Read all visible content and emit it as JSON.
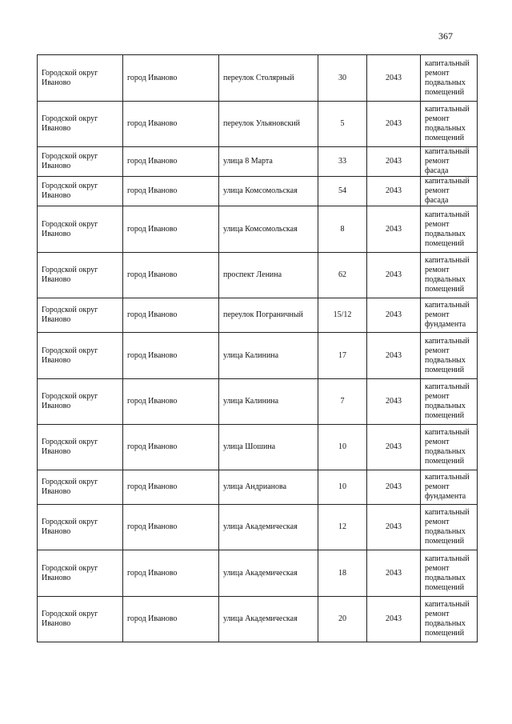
{
  "page_number": "367",
  "table": {
    "rows": [
      [
        "Городской округ Иваново",
        "город Иваново",
        "переулок Столярный",
        "30",
        "2043",
        "капитальный ремонт подвальных помещений"
      ],
      [
        "Городской округ Иваново",
        "город Иваново",
        "переулок Ульяновский",
        "5",
        "2043",
        "капитальный ремонт подвальных помещений"
      ],
      [
        "Городской округ Иваново",
        "город Иваново",
        "улица 8 Марта",
        "33",
        "2043",
        "капитальный ремонт фасада"
      ],
      [
        "Городской округ Иваново",
        "город Иваново",
        "улица Комсомольская",
        "54",
        "2043",
        "капитальный ремонт фасада"
      ],
      [
        "Городской округ Иваново",
        "город Иваново",
        "улица Комсомольская",
        "8",
        "2043",
        "капитальный ремонт подвальных помещений"
      ],
      [
        "Городской округ Иваново",
        "город Иваново",
        "проспект Ленина",
        "62",
        "2043",
        "капитальный ремонт подвальных помещений"
      ],
      [
        "Городской округ Иваново",
        "город Иваново",
        "переулок Пограничный",
        "15/12",
        "2043",
        "капитальный ремонт фундамента"
      ],
      [
        "Городской округ Иваново",
        "город Иваново",
        "улица Калинина",
        "17",
        "2043",
        "капитальный ремонт подвальных помещений"
      ],
      [
        "Городской округ Иваново",
        "город Иваново",
        "улица Калинина",
        "7",
        "2043",
        "капитальный ремонт подвальных помещений"
      ],
      [
        "Городской округ Иваново",
        "город Иваново",
        "улица Шошина",
        "10",
        "2043",
        "капитальный ремонт подвальных помещений"
      ],
      [
        "Городской округ Иваново",
        "город Иваново",
        "улица Андрианова",
        "10",
        "2043",
        "капитальный ремонт фундамента"
      ],
      [
        "Городской округ Иваново",
        "город Иваново",
        "улица Академическая",
        "12",
        "2043",
        "капитальный ремонт подвальных помещений"
      ],
      [
        "Городской округ Иваново",
        "город Иваново",
        "улица Академическая",
        "18",
        "2043",
        "капитальный ремонт подвальных помещений"
      ],
      [
        "Городской округ Иваново",
        "город Иваново",
        "улица Академическая",
        "20",
        "2043",
        "капитальный ремонт подвальных помещений"
      ]
    ]
  }
}
